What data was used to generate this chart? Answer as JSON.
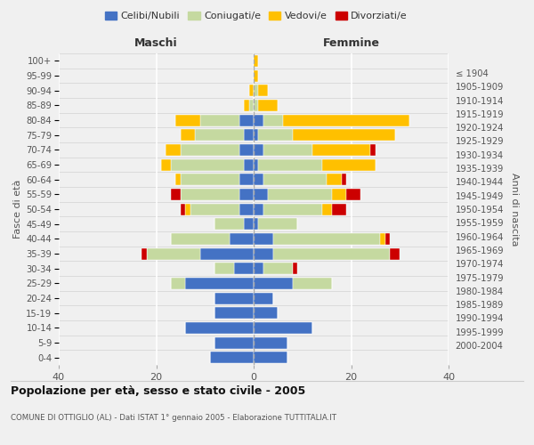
{
  "age_groups": [
    "0-4",
    "5-9",
    "10-14",
    "15-19",
    "20-24",
    "25-29",
    "30-34",
    "35-39",
    "40-44",
    "45-49",
    "50-54",
    "55-59",
    "60-64",
    "65-69",
    "70-74",
    "75-79",
    "80-84",
    "85-89",
    "90-94",
    "95-99",
    "100+"
  ],
  "year_labels": [
    "2000-2004",
    "1995-1999",
    "1990-1994",
    "1985-1989",
    "1980-1984",
    "1975-1979",
    "1970-1974",
    "1965-1969",
    "1960-1964",
    "1955-1959",
    "1950-1954",
    "1945-1949",
    "1940-1944",
    "1935-1939",
    "1930-1934",
    "1925-1929",
    "1920-1924",
    "1915-1919",
    "1910-1914",
    "1905-1909",
    "≤ 1904"
  ],
  "colors": {
    "celibi": "#4472c4",
    "coniugati": "#c5d9a0",
    "vedovi": "#ffc000",
    "divorziati": "#cc0000"
  },
  "males": {
    "celibi": [
      9,
      8,
      14,
      8,
      8,
      14,
      4,
      11,
      5,
      2,
      3,
      3,
      3,
      2,
      3,
      2,
      3,
      0,
      0,
      0,
      0
    ],
    "coniugati": [
      0,
      0,
      0,
      0,
      0,
      3,
      4,
      11,
      12,
      6,
      10,
      12,
      12,
      15,
      12,
      10,
      8,
      1,
      0,
      0,
      0
    ],
    "vedovi": [
      0,
      0,
      0,
      0,
      0,
      0,
      0,
      0,
      0,
      0,
      1,
      0,
      1,
      2,
      3,
      3,
      5,
      1,
      1,
      0,
      0
    ],
    "divorziati": [
      0,
      0,
      0,
      0,
      0,
      0,
      0,
      1,
      0,
      0,
      1,
      2,
      0,
      0,
      0,
      0,
      0,
      0,
      0,
      0,
      0
    ]
  },
  "females": {
    "celibi": [
      7,
      7,
      12,
      5,
      4,
      8,
      2,
      4,
      4,
      1,
      2,
      3,
      2,
      1,
      2,
      1,
      2,
      0,
      0,
      0,
      0
    ],
    "coniugati": [
      0,
      0,
      0,
      0,
      0,
      8,
      6,
      24,
      22,
      8,
      12,
      13,
      13,
      13,
      10,
      7,
      4,
      1,
      1,
      0,
      0
    ],
    "vedovi": [
      0,
      0,
      0,
      0,
      0,
      0,
      0,
      0,
      1,
      0,
      2,
      3,
      3,
      11,
      12,
      21,
      26,
      4,
      2,
      1,
      1
    ],
    "divorziati": [
      0,
      0,
      0,
      0,
      0,
      0,
      1,
      2,
      1,
      0,
      3,
      3,
      1,
      0,
      1,
      0,
      0,
      0,
      0,
      0,
      0
    ]
  },
  "title": "Popolazione per età, sesso e stato civile - 2005",
  "subtitle": "COMUNE DI OTTIGLIO (AL) - Dati ISTAT 1° gennaio 2005 - Elaborazione TUTTITALIA.IT",
  "xlabel_left": "Maschi",
  "xlabel_right": "Femmine",
  "ylabel_left": "Fasce di età",
  "ylabel_right": "Anni di nascita",
  "xlim": 40,
  "bg_color": "#f0f0f0",
  "bar_height": 0.78
}
